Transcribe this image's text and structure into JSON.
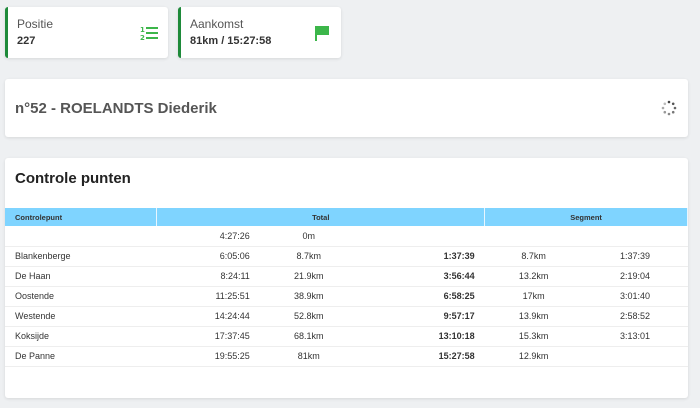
{
  "stats": {
    "position": {
      "label": "Positie",
      "value": "227",
      "icon": "numbered-list-icon"
    },
    "arrival": {
      "label": "Aankomst",
      "value": "81km / 15:27:58",
      "icon": "flag-icon"
    }
  },
  "colors": {
    "accent": "#1e8a3a",
    "header": "#7fd4ff",
    "icon": "#3cb64a"
  },
  "rider": {
    "title": "n°52 - ROELANDTS Diederik"
  },
  "controls": {
    "title": "Controle punten",
    "headers": {
      "point": "Controlepunt",
      "total": "Total",
      "segment": "Segment"
    },
    "rows": [
      {
        "name": "",
        "time": "4:27:26",
        "km": "0m",
        "elapsed": "",
        "seg_km": "",
        "seg_time": ""
      },
      {
        "name": "Blankenberge",
        "time": "6:05:06",
        "km": "8.7km",
        "elapsed": "1:37:39",
        "seg_km": "8.7km",
        "seg_time": "1:37:39"
      },
      {
        "name": "De Haan",
        "time": "8:24:11",
        "km": "21.9km",
        "elapsed": "3:56:44",
        "seg_km": "13.2km",
        "seg_time": "2:19:04"
      },
      {
        "name": "Oostende",
        "time": "11:25:51",
        "km": "38.9km",
        "elapsed": "6:58:25",
        "seg_km": "17km",
        "seg_time": "3:01:40"
      },
      {
        "name": "Westende",
        "time": "14:24:44",
        "km": "52.8km",
        "elapsed": "9:57:17",
        "seg_km": "13.9km",
        "seg_time": "2:58:52"
      },
      {
        "name": "Koksijde",
        "time": "17:37:45",
        "km": "68.1km",
        "elapsed": "13:10:18",
        "seg_km": "15.3km",
        "seg_time": "3:13:01"
      },
      {
        "name": "De Panne",
        "time": "19:55:25",
        "km": "81km",
        "elapsed": "15:27:58",
        "seg_km": "12.9km",
        "seg_time": ""
      }
    ]
  }
}
